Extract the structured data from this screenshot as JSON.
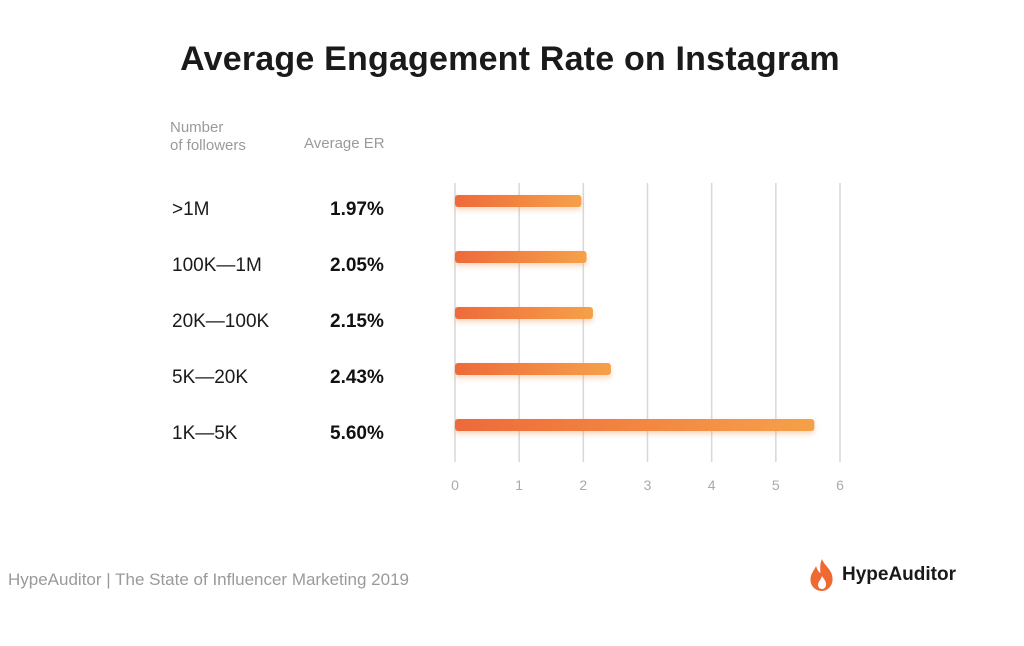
{
  "chart_data": {
    "type": "bar",
    "orientation": "horizontal",
    "title": "Average Engagement Rate on Instagram",
    "category_header": "Number\nof followers",
    "value_header": "Average ER",
    "categories": [
      ">1M",
      "100K—1M",
      "20K—100K",
      "5K—20K",
      "1K—5K"
    ],
    "value_labels": [
      "1.97%",
      "2.05%",
      "2.15%",
      "2.43%",
      "5.60%"
    ],
    "values": [
      1.97,
      2.05,
      2.15,
      2.43,
      5.6
    ],
    "xlim": [
      0,
      6
    ],
    "x_ticks": [
      "0",
      "1",
      "2",
      "3",
      "4",
      "5",
      "6"
    ],
    "grid": true,
    "colors": {
      "bar_start": "#ee6a3a",
      "bar_end": "#f5a14a",
      "grid": "#d8d8d8",
      "tick": "#aaaaaa"
    }
  },
  "footer": {
    "source": "HypeAuditor | The State of Influencer Marketing 2019",
    "brand_name": "HypeAuditor",
    "brand_icon": "flame-icon",
    "brand_color": "#ef6a32"
  }
}
